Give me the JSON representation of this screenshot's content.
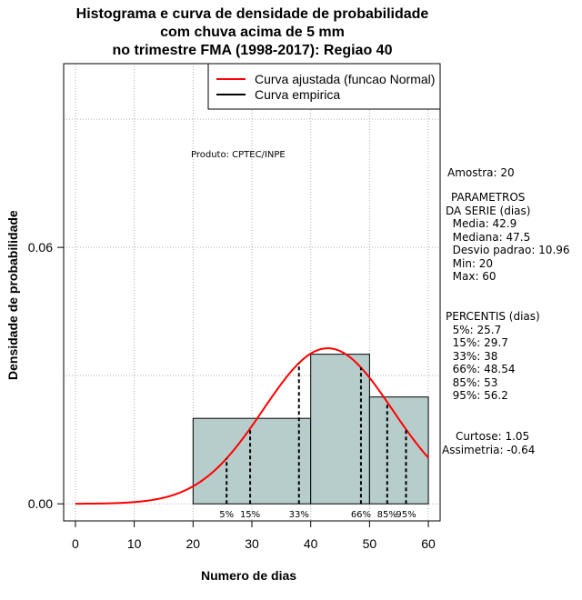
{
  "chart_data": {
    "type": "bar",
    "title_lines": [
      "Histograma e curva de densidade de probabilidade",
      "com chuva acima de 5 mm",
      "no trimestre FMA (1998-2017): Regiao 40"
    ],
    "xlabel": "Numero de dias",
    "ylabel": "Densidade de probabilidade",
    "xlim": [
      -2,
      62
    ],
    "ylim": [
      -0.004,
      0.103
    ],
    "x_ticks": [
      0,
      10,
      20,
      30,
      40,
      50,
      60
    ],
    "y_ticks": [
      0.0,
      0.06
    ],
    "y_tick_labels": [
      "0.00",
      "0.06"
    ],
    "grid": true,
    "histogram": [
      {
        "x0": 20,
        "x1": 40,
        "density": 0.02
      },
      {
        "x0": 40,
        "x1": 50,
        "density": 0.035
      },
      {
        "x0": 50,
        "x1": 60,
        "density": 0.025
      }
    ],
    "normal_curve": {
      "mean": 42.9,
      "sd": 10.96,
      "from": 0,
      "to": 60
    },
    "percentile_lines": [
      {
        "label": "5%",
        "x": 25.7
      },
      {
        "label": "15%",
        "x": 29.7
      },
      {
        "label": "33%",
        "x": 38
      },
      {
        "label": "66%",
        "x": 48.54
      },
      {
        "label": "85%",
        "x": 53
      },
      {
        "label": "95%",
        "x": 56.2
      }
    ],
    "legend": {
      "position": "top-right",
      "entries": [
        {
          "label": "Curva ajustada (funcao Normal)",
          "color": "#ff0000"
        },
        {
          "label": "Curva empirica",
          "color": "#000000"
        }
      ]
    },
    "annotation": "Produto: CPTEC/INPE",
    "colors": {
      "bar_fill": "#b7cdcc",
      "curve": "#ff0000",
      "grid": "#b0b0b0"
    }
  },
  "side_panel": {
    "amostra": "Amostra: 20",
    "parametros": [
      "PARAMETROS",
      "DA SERIE (dias)",
      "  Media: 42.9",
      "  Mediana: 47.5",
      "  Desvio padrao: 10.96",
      "  Min: 20",
      "  Max: 60"
    ],
    "percentis": [
      "PERCENTIS (dias)",
      "  5%: 25.7",
      "  15%: 29.7",
      "  33%: 38",
      "  66%: 48.54",
      "  85%: 53",
      "  95%: 56.2"
    ],
    "curtose": "Curtose: 1.05",
    "assimetria": "Assimetria: -0.64"
  }
}
